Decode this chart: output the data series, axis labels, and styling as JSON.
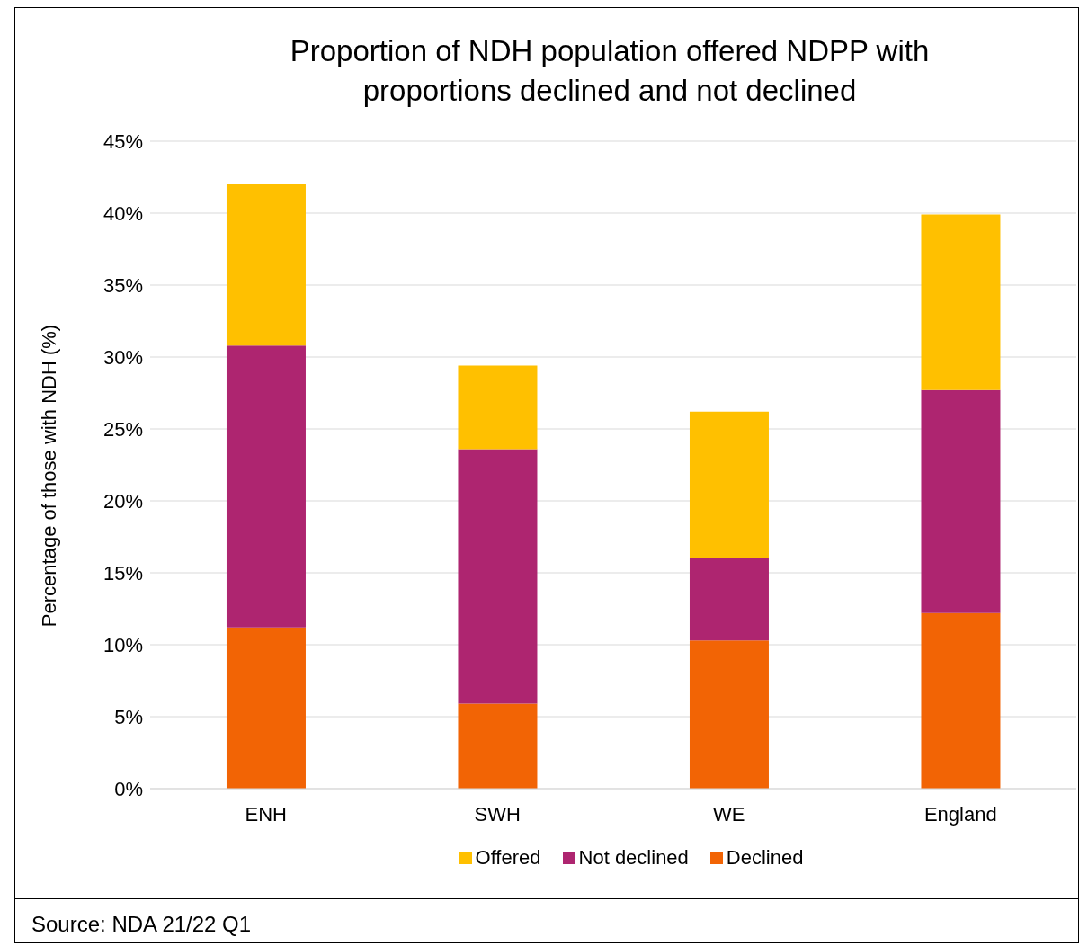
{
  "chart_data": {
    "type": "bar",
    "title": "Proportion of NDH population offered NDPP with proportions declined and not declined",
    "ylabel": "Percentage of those with NDH (%)",
    "categories": [
      "ENH",
      "SWH",
      "WE",
      "England"
    ],
    "stacked": true,
    "series": [
      {
        "name": "Declined",
        "color": "#f26405",
        "values": [
          11.2,
          5.9,
          10.3,
          12.2
        ]
      },
      {
        "name": "Not declined",
        "color": "#ae2570",
        "values": [
          19.6,
          17.7,
          5.7,
          15.5
        ]
      },
      {
        "name": "Offered",
        "color": "#ffc000",
        "values": [
          11.2,
          5.8,
          10.2,
          12.2
        ]
      }
    ],
    "ylim": [
      0,
      45
    ],
    "yticks": [
      {
        "value": 0,
        "label": "0%"
      },
      {
        "value": 5,
        "label": "5%"
      },
      {
        "value": 10,
        "label": "10%"
      },
      {
        "value": 15,
        "label": "15%"
      },
      {
        "value": 20,
        "label": "20%"
      },
      {
        "value": 25,
        "label": "25%"
      },
      {
        "value": 30,
        "label": "30%"
      },
      {
        "value": 35,
        "label": "35%"
      },
      {
        "value": 40,
        "label": "40%"
      },
      {
        "value": 45,
        "label": "45%"
      }
    ],
    "grid": "y",
    "legend": "bottom",
    "annotations": [
      "Source: NDA 21/22 Q1"
    ]
  }
}
